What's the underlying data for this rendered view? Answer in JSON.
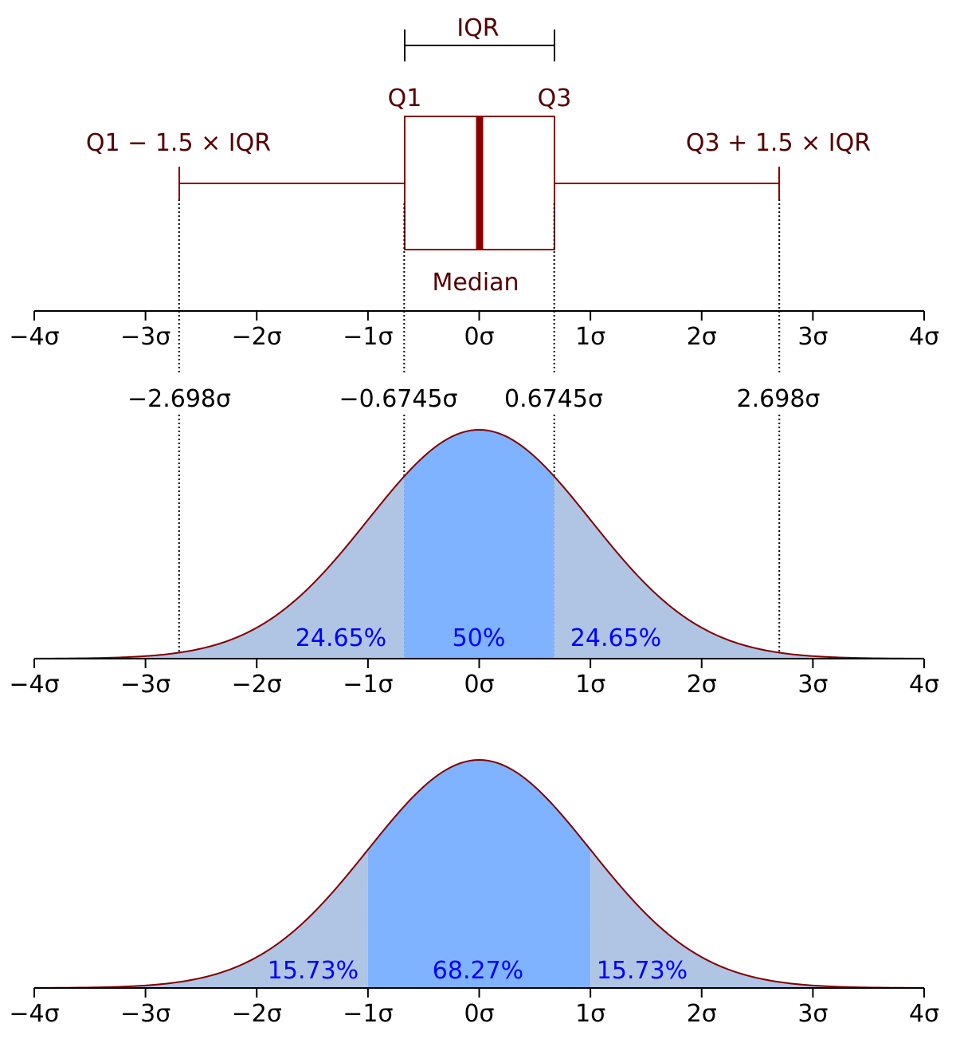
{
  "colors": {
    "box": "#8b0000",
    "box_text": "#550000",
    "axis": "#000000",
    "fill_outer": "#b0c4e4",
    "fill_inner": "#80b3ff",
    "pct_text": "#0000ff",
    "curve": "#800000"
  },
  "chart_data": [
    {
      "type": "box",
      "xlim": [
        -4,
        4
      ],
      "whisker_low": -2.698,
      "q1": -0.6745,
      "median": 0,
      "q3": 0.6745,
      "whisker_high": 2.698,
      "labels": {
        "iqr": "IQR",
        "q1": "Q1",
        "q3": "Q3",
        "median": "Median",
        "lower_fence": "Q1 − 1.5 × IQR",
        "upper_fence": "Q3 + 1.5 × IQR"
      },
      "x_ticks": [
        -4,
        -3,
        -2,
        -1,
        0,
        1,
        2,
        3,
        4
      ],
      "x_tick_labels": [
        "−4σ",
        "−3σ",
        "−2σ",
        "−1σ",
        "0σ",
        "1σ",
        "2σ",
        "3σ",
        "4σ"
      ]
    },
    {
      "type": "area",
      "distribution": "standard normal",
      "xlim": [
        -4,
        4
      ],
      "boundaries": [
        -2.698,
        -0.6745,
        0.6745,
        2.698
      ],
      "boundary_labels": [
        "−2.698σ",
        "−0.6745σ",
        "0.6745σ",
        "2.698σ"
      ],
      "regions": [
        {
          "from": -2.698,
          "to": -0.6745,
          "label": "24.65%",
          "value": 24.65
        },
        {
          "from": -0.6745,
          "to": 0.6745,
          "label": "50%",
          "value": 50
        },
        {
          "from": 0.6745,
          "to": 2.698,
          "label": "24.65%",
          "value": 24.65
        }
      ],
      "x_ticks": [
        -4,
        -3,
        -2,
        -1,
        0,
        1,
        2,
        3,
        4
      ],
      "x_tick_labels": [
        "−4σ",
        "−3σ",
        "−2σ",
        "−1σ",
        "0σ",
        "1σ",
        "2σ",
        "3σ",
        "4σ"
      ]
    },
    {
      "type": "area",
      "distribution": "standard normal",
      "xlim": [
        -4,
        4
      ],
      "regions": [
        {
          "from": -4,
          "to": -1,
          "label": "15.73%",
          "value": 15.73
        },
        {
          "from": -1,
          "to": 1,
          "label": "68.27%",
          "value": 68.27
        },
        {
          "from": 1,
          "to": 4,
          "label": "15.73%",
          "value": 15.73
        }
      ],
      "x_ticks": [
        -4,
        -3,
        -2,
        -1,
        0,
        1,
        2,
        3,
        4
      ],
      "x_tick_labels": [
        "−4σ",
        "−3σ",
        "−2σ",
        "−1σ",
        "0σ",
        "1σ",
        "2σ",
        "3σ",
        "4σ"
      ]
    }
  ]
}
